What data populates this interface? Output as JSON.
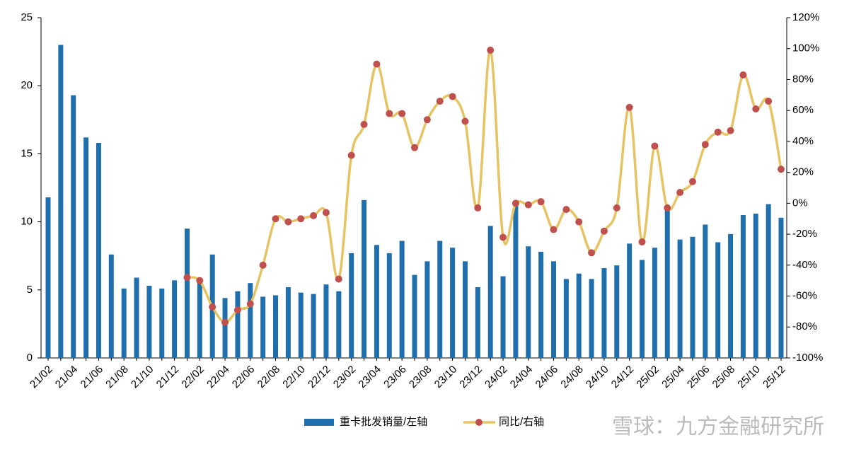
{
  "chart_data": {
    "type": "bar_line",
    "categories": [
      "21/02",
      null,
      "21/04",
      null,
      "21/06",
      null,
      "21/08",
      null,
      "21/10",
      null,
      "21/12",
      null,
      "22/02",
      null,
      "22/04",
      null,
      "22/06",
      null,
      "22/08",
      null,
      "22/10",
      null,
      "22/12",
      null,
      "23/02",
      null,
      "23/04",
      null,
      "23/06",
      null,
      "23/08",
      null,
      "23/10",
      null,
      "23/12",
      null,
      "24/02",
      null,
      "24/04",
      null,
      "24/06",
      null,
      "24/08",
      null,
      "24/10",
      null,
      "24/12",
      null,
      "25/02",
      null,
      "25/04",
      null,
      "25/06",
      null,
      "25/08",
      null,
      "25/10",
      null,
      "25/12"
    ],
    "series": [
      {
        "name": "重卡批发销量/左轴",
        "color": "#1f6fad",
        "type": "bar",
        "values": [
          11.8,
          23.0,
          19.3,
          16.2,
          15.8,
          7.6,
          5.1,
          5.9,
          5.3,
          5.1,
          5.7,
          9.5,
          5.7,
          7.6,
          4.4,
          4.9,
          5.5,
          4.5,
          4.6,
          5.2,
          4.8,
          4.7,
          5.4,
          4.9,
          7.7,
          11.6,
          8.3,
          7.7,
          8.6,
          6.1,
          7.1,
          8.6,
          8.1,
          7.1,
          5.2,
          9.7,
          6.0,
          11.2,
          8.2,
          7.8,
          7.1,
          5.8,
          6.2,
          5.8,
          6.6,
          6.8,
          8.4,
          7.2,
          8.1,
          11.0,
          8.7,
          8.9,
          9.8,
          8.5,
          9.1,
          10.5,
          10.6,
          11.3,
          10.3
        ]
      },
      {
        "name": "同比/右轴",
        "color": "#e6c463",
        "marker_color": "#c0504d",
        "type": "line",
        "axis": "y2",
        "values": [
          null,
          null,
          null,
          null,
          null,
          null,
          null,
          null,
          null,
          null,
          null,
          -48,
          -50,
          -67,
          -77,
          -69,
          -65,
          -40,
          -10,
          -12,
          -10,
          -8,
          -6,
          -49,
          31,
          51,
          90,
          58,
          58,
          36,
          54,
          66,
          69,
          53,
          -3,
          99,
          -22,
          0,
          -1,
          1,
          -17,
          -4,
          -12,
          -32,
          -18,
          -3,
          62,
          -25,
          37,
          -3,
          7,
          14,
          38,
          46,
          47,
          83,
          61,
          66,
          22
        ]
      }
    ],
    "ylim": [
      0,
      25
    ],
    "yticks": [
      0,
      5,
      10,
      15,
      20,
      25
    ],
    "y2lim": [
      -100,
      120
    ],
    "y2ticks": [
      {
        "value": -100,
        "label": "-100%"
      },
      {
        "value": -80,
        "label": "-80%"
      },
      {
        "value": -60,
        "label": "-60%"
      },
      {
        "value": -40,
        "label": "-40%"
      },
      {
        "value": -20,
        "label": "-20%"
      },
      {
        "value": 0,
        "label": "0%"
      },
      {
        "value": 20,
        "label": "20%"
      },
      {
        "value": 40,
        "label": "40%"
      },
      {
        "value": 60,
        "label": "60%"
      },
      {
        "value": 80,
        "label": "80%"
      },
      {
        "value": 100,
        "label": "100%"
      },
      {
        "value": 120,
        "label": "120%"
      }
    ],
    "legend": "bottom",
    "watermark": "雪球：九方金融研究所"
  }
}
